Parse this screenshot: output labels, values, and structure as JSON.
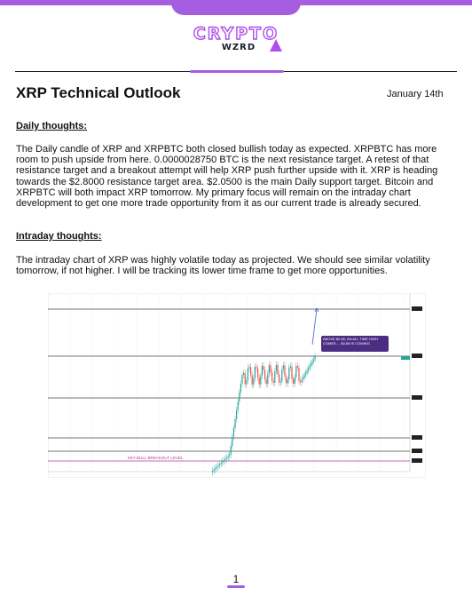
{
  "header": {
    "brand_top": "CRYPTO",
    "brand_bottom": "WZRD",
    "accent_color": "#a55ee0"
  },
  "title": "XRP Technical Outlook",
  "date": "January 14th",
  "daily": {
    "heading": "Daily thoughts:",
    "body": "The Daily candle of XRP and XRPBTC both closed bullish today as expected. XRPBTC has more room to push upside from here. 0.0000028750 BTC is the next resistance target. A retest of that resistance target and a breakout attempt will help XRP push further upside with it. XRP is heading towards the $2.8000 resistance target area. $2.0500 is the main Daily support target. Bitcoin and XRPBTC will both impact XRP tomorrow. My primary focus will remain on the intraday chart development to get one more trade opportunity from it as our current trade is already secured."
  },
  "intraday": {
    "heading": "Intraday thoughts:",
    "body": "The intraday chart of XRP was highly volatile today as projected. We should see similar volatility tomorrow, if not higher. I will be tracking its lower time frame to get more opportunities."
  },
  "chart": {
    "callout": "ABOVE $2.80, AN ALL TIME HIGH COMES.... $3.65 IS COMING",
    "breakout_label": "KEY BULL BREAKOUT LEVEL",
    "up_color": "#26a69a",
    "down_color": "#ef5350",
    "callout_color": "#4b2e83"
  },
  "footer": {
    "page_number": "1"
  }
}
